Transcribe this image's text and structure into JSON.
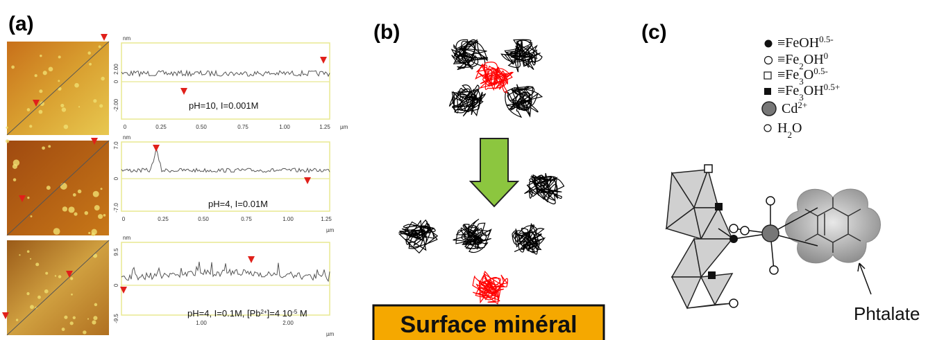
{
  "panels": [
    {
      "label": "(a)",
      "profiles": [
        {
          "y_unit": "nm",
          "yticks": [
            "2.00",
            "0",
            "-2.00"
          ],
          "xticks": [
            "0",
            "0.25",
            "0.50",
            "0.75",
            "1.00",
            "1.25"
          ],
          "x_unit": "µm",
          "caption": [
            {
              "text": "pH=10, I=0.001M"
            }
          ]
        },
        {
          "y_unit": "nm",
          "yticks": [
            "7.0",
            "0",
            "-7.0"
          ],
          "xticks": [
            "0",
            "0.25",
            "0.50",
            "0.75",
            "1.00",
            "1.25"
          ],
          "x_unit": "µm",
          "caption": [
            {
              "text": "pH=4, I=0.01M"
            }
          ]
        },
        {
          "y_unit": "nm",
          "yticks": [
            "9.5",
            "0",
            "-9.5"
          ],
          "xticks": [
            "1.00",
            "2.00"
          ],
          "x_unit": "µm",
          "caption": [
            {
              "text": "pH=4, I=0.1M, [Pb"
            },
            {
              "sup": "2+"
            },
            {
              "text": "]=4 10"
            },
            {
              "sup": "-5"
            },
            {
              "text": " M"
            }
          ]
        }
      ]
    },
    {
      "label": "(b)",
      "box": "Surface minéral"
    },
    {
      "label": "(c)",
      "legend": [
        [
          {
            "text": "≡FeOH"
          },
          {
            "sup": "0.5-"
          }
        ],
        [
          {
            "text": "≡Fe"
          },
          {
            "sub": "2"
          },
          {
            "text": "OH"
          },
          {
            "sup": "0"
          }
        ],
        [
          {
            "text": "≡Fe"
          },
          {
            "sub": "3"
          },
          {
            "text": "O"
          },
          {
            "sup": "0.5-"
          }
        ],
        [
          {
            "text": "≡Fe"
          },
          {
            "sub": "3"
          },
          {
            "text": "OH"
          },
          {
            "sup": "0.5+"
          }
        ],
        [
          {
            "text": "Cd"
          },
          {
            "sup": "2+"
          }
        ],
        [
          {
            "text": "H"
          },
          {
            "sub": "2"
          },
          {
            "text": "O"
          }
        ]
      ],
      "annotation": "Phtalate"
    }
  ]
}
